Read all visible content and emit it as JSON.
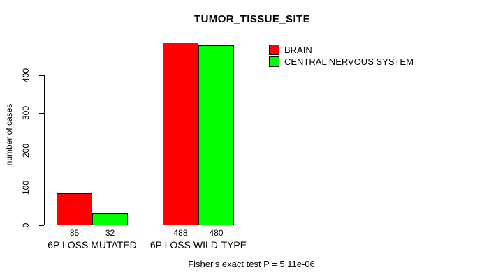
{
  "chart_data": {
    "type": "bar",
    "title": "TUMOR_TISSUE_SITE",
    "ylabel": "number of cases",
    "xlabel": "",
    "categories": [
      "6P LOSS MUTATED",
      "6P LOSS WILD-TYPE"
    ],
    "series": [
      {
        "name": "BRAIN",
        "color": "#ff0000",
        "values": [
          85,
          488
        ]
      },
      {
        "name": "CENTRAL NERVOUS SYSTEM",
        "color": "#00ff00",
        "values": [
          32,
          480
        ]
      }
    ],
    "value_labels": [
      [
        "85",
        "488"
      ],
      [
        "32",
        "480"
      ]
    ],
    "y_ticks": [
      0,
      100,
      200,
      300,
      400
    ],
    "ylim": [
      0,
      490
    ],
    "grid": false,
    "legend_position": "top-right",
    "values_shown_below_bars": true,
    "annotation": "Fisher's exact test P = 5.11e-06",
    "axis_color": "#000000",
    "background_color": "#ffffff"
  }
}
